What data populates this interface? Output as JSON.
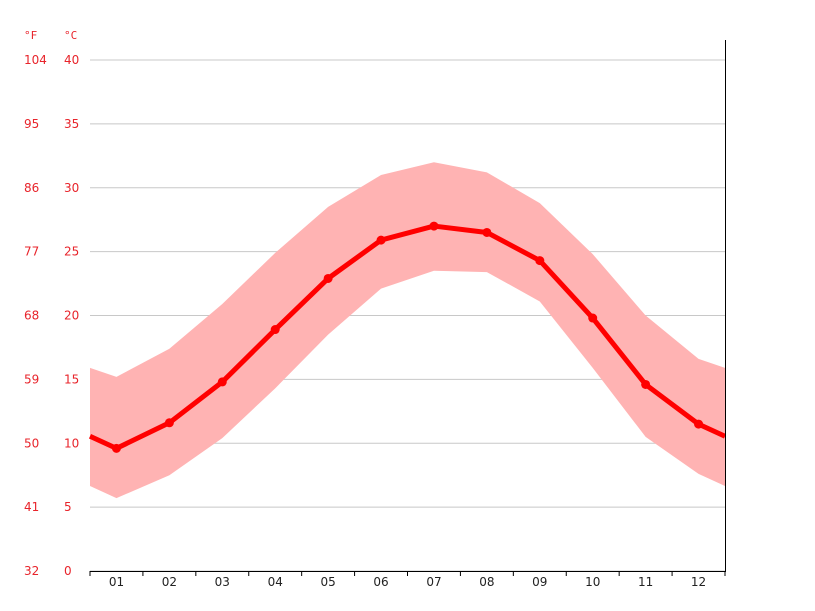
{
  "chart_data": {
    "type": "line",
    "title": "",
    "xlabel": "",
    "ylabel": "",
    "units": {
      "fahrenheit": "°F",
      "celsius": "°C"
    },
    "categories": [
      "01",
      "02",
      "03",
      "04",
      "05",
      "06",
      "07",
      "08",
      "09",
      "10",
      "11",
      "12"
    ],
    "ylim": [
      0,
      40
    ],
    "yticks_celsius": [
      "0",
      "5",
      "10",
      "15",
      "20",
      "25",
      "30",
      "35",
      "40"
    ],
    "yticks_fahrenheit": [
      "32",
      "41",
      "50",
      "59",
      "68",
      "77",
      "86",
      "95",
      "104"
    ],
    "grid": true,
    "series": [
      {
        "values": [
          9.6,
          11.6,
          14.8,
          18.9,
          22.9,
          25.9,
          27.0,
          26.5,
          24.3,
          19.8,
          14.6,
          11.5
        ],
        "style": "line"
      },
      {
        "values": [
          15.2,
          17.4,
          20.9,
          24.9,
          28.5,
          31.0,
          32.0,
          31.2,
          28.8,
          24.8,
          20.0,
          16.6
        ],
        "style": "band-upper"
      },
      {
        "values": [
          5.7,
          7.5,
          10.4,
          14.3,
          18.5,
          22.1,
          23.5,
          23.4,
          21.1,
          15.9,
          10.5,
          7.6
        ],
        "style": "band-lower"
      }
    ],
    "colors": {
      "line": "#ff0000",
      "band": "#ffb3b3",
      "grid": "#c8c8c8",
      "axis_text": "#e8242b"
    }
  }
}
